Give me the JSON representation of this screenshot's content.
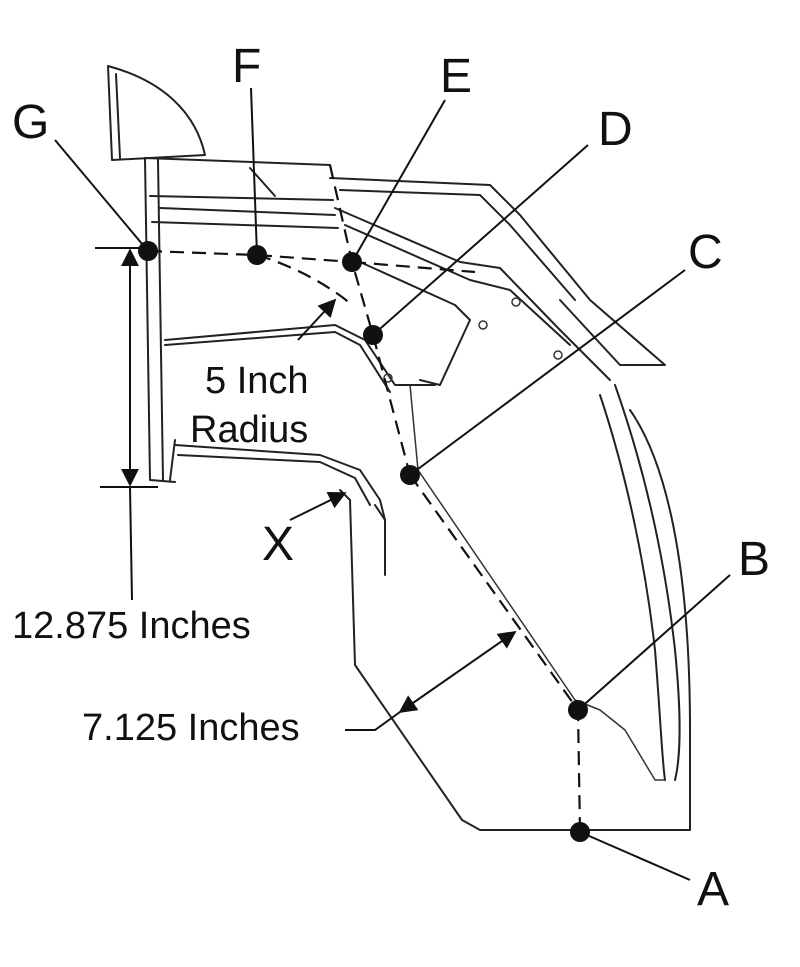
{
  "points": [
    {
      "label": "A"
    },
    {
      "label": "B"
    },
    {
      "label": "C"
    },
    {
      "label": "D"
    },
    {
      "label": "E"
    },
    {
      "label": "F"
    },
    {
      "label": "G"
    }
  ],
  "annotations": {
    "radius_line1": "5 Inch",
    "radius_line2": "Radius",
    "x_label": "X",
    "height_dim": "12.875 Inches",
    "offset_dim": "7.125 Inches"
  }
}
